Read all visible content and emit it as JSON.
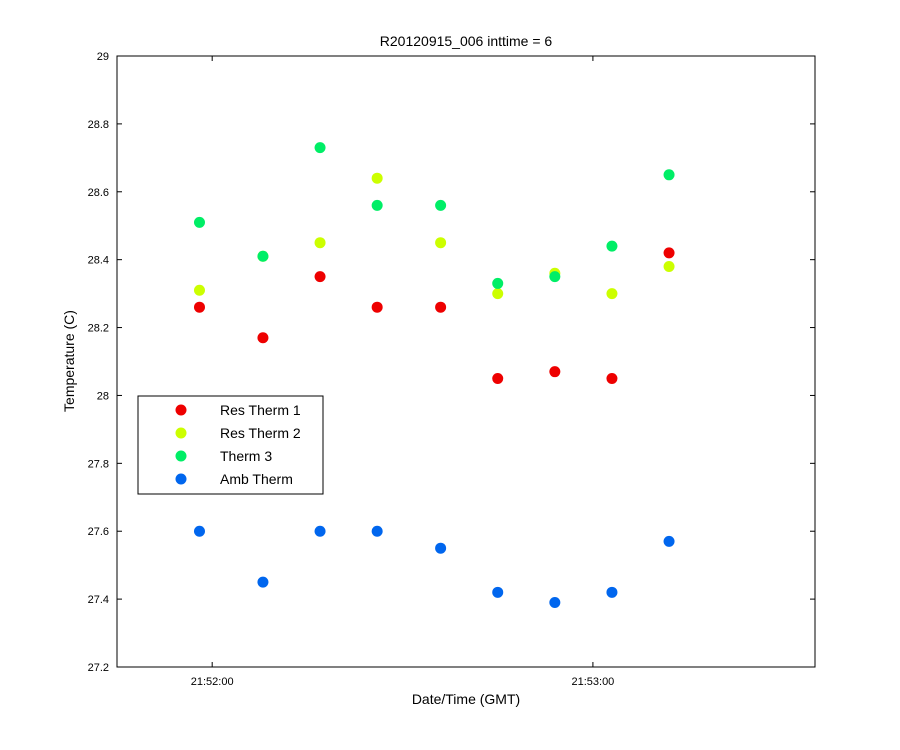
{
  "chart_data": {
    "type": "scatter",
    "title": "R20120915_006 inttime = 6",
    "xlabel": "Date/Time (GMT)",
    "ylabel": "Temperature (C)",
    "x_unit": "time (HH:MM:SS, GMT)",
    "xlim": [
      "21:51:45",
      "21:53:35"
    ],
    "ylim": [
      27.2,
      29
    ],
    "x_ticks": [
      "21:52:00",
      "21:53:00"
    ],
    "y_ticks": [
      "27.2",
      "27.4",
      "27.6",
      "27.8",
      "28",
      "28.2",
      "28.4",
      "28.6",
      "28.8",
      "29"
    ],
    "y_tick_values": [
      27.2,
      27.4,
      27.6,
      27.8,
      28.0,
      28.2,
      28.4,
      28.6,
      28.8,
      29.0
    ],
    "grid": false,
    "legend_position": "middle-left",
    "x": [
      "21:51:58",
      "21:52:08",
      "21:52:17",
      "21:52:26",
      "21:52:36",
      "21:52:45",
      "21:52:54",
      "21:53:03",
      "21:53:12"
    ],
    "series": [
      {
        "name": "Res Therm 1",
        "color": "#ee0000",
        "values": [
          28.26,
          28.17,
          28.35,
          28.26,
          28.26,
          28.05,
          28.07,
          28.05,
          28.42
        ]
      },
      {
        "name": "Res Therm 2",
        "color": "#ccff00",
        "values": [
          28.31,
          28.41,
          28.45,
          28.64,
          28.45,
          28.3,
          28.36,
          28.3,
          28.38
        ]
      },
      {
        "name": "Therm 3",
        "color": "#00ee66",
        "values": [
          28.51,
          28.41,
          28.73,
          28.56,
          28.56,
          28.33,
          28.35,
          28.44,
          28.65
        ]
      },
      {
        "name": "Amb Therm",
        "color": "#0066ee",
        "values": [
          27.6,
          27.45,
          27.6,
          27.6,
          27.55,
          27.42,
          27.39,
          27.42,
          27.57
        ]
      }
    ]
  }
}
